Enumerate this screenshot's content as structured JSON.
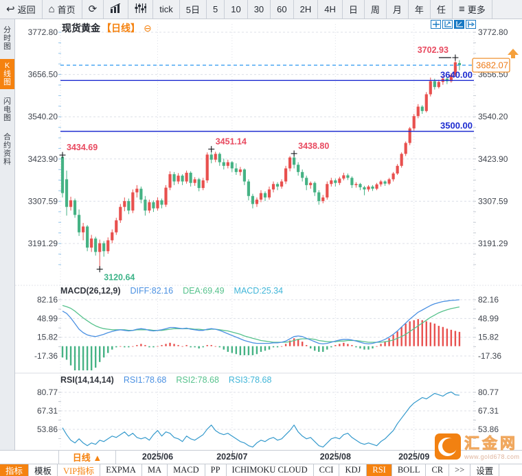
{
  "colors": {
    "accent_orange": "#f5820f",
    "up_red": "#e8504e",
    "down_green": "#45b284",
    "hline_blue": "#1c2bd0",
    "last_price_dash_blue": "#3b9ff0",
    "diff_blue": "#4a90e2",
    "dea_green": "#56c28c",
    "macd_cyan": "#3fb5d8",
    "rsi_line": "#3399cc",
    "annotation_red": "#e8495f",
    "annotation_green": "#3eb489",
    "axis_text": "#3f444d",
    "zoom_icon_blue": "#1779c4"
  },
  "toolbar": {
    "items": [
      {
        "name": "back",
        "icon": "back-arrow-icon",
        "label": "返回"
      },
      {
        "name": "home",
        "icon": "home-icon",
        "label": "首页"
      },
      {
        "name": "refresh",
        "icon": "refresh-icon",
        "label": ""
      },
      {
        "name": "bar-chart",
        "icon": "bar-chart-icon",
        "label": ""
      },
      {
        "name": "candle-chart",
        "icon": "candle-chart-icon",
        "label": ""
      },
      {
        "name": "tick",
        "label": "tick"
      },
      {
        "name": "5d",
        "label": "5日"
      },
      {
        "name": "5",
        "label": "5"
      },
      {
        "name": "10",
        "label": "10"
      },
      {
        "name": "30",
        "label": "30"
      },
      {
        "name": "60",
        "label": "60"
      },
      {
        "name": "2h",
        "label": "2H"
      },
      {
        "name": "4h",
        "label": "4H"
      },
      {
        "name": "day",
        "label": "日"
      },
      {
        "name": "week",
        "label": "周"
      },
      {
        "name": "month",
        "label": "月"
      },
      {
        "name": "year",
        "label": "年"
      },
      {
        "name": "custom",
        "label": "任"
      },
      {
        "name": "more",
        "icon": "menu-icon",
        "label": "更多"
      }
    ]
  },
  "sidebar": {
    "items": [
      {
        "name": "time-chart",
        "label": "分时图",
        "active": false
      },
      {
        "name": "kline-chart",
        "label": "K线图",
        "active": true
      },
      {
        "name": "lightning-chart",
        "label": "闪电图",
        "active": false
      },
      {
        "name": "contract-info",
        "label": "合约资料",
        "active": false
      }
    ]
  },
  "chart_header": {
    "symbol": "现货黄金",
    "period": "【日线】",
    "collapse_icon": "⊖"
  },
  "indicator_headers": {
    "macd": [
      {
        "text": "MACD(26,12,9)",
        "color": "#32363e"
      },
      {
        "text": "DIFF:82.16",
        "color": "#4a90e2"
      },
      {
        "text": "DEA:69.49",
        "color": "#56c28c"
      },
      {
        "text": "MACD:25.34",
        "color": "#3fb5d8"
      }
    ],
    "rsi": [
      {
        "text": "RSI(14,14,14)",
        "color": "#32363e"
      },
      {
        "text": "RSI1:78.68",
        "color": "#4a90e2"
      },
      {
        "text": "RSI2:78.68",
        "color": "#56c28c"
      },
      {
        "text": "RSI3:78.68",
        "color": "#3fb5d8"
      }
    ]
  },
  "bottom": {
    "period_button": "日线 ▲",
    "tabs": [
      {
        "label": "指标",
        "style": "active"
      },
      {
        "label": "模板",
        "style": "normal"
      },
      {
        "label": "VIP指标",
        "style": "vip"
      },
      {
        "label": "EXPMA",
        "style": "normal"
      },
      {
        "label": "MA",
        "style": "normal"
      },
      {
        "label": "MACD",
        "style": "normal"
      },
      {
        "label": "PP",
        "style": "normal"
      },
      {
        "label": "ICHIMOKU CLOUD",
        "style": "normal"
      },
      {
        "label": "CCI",
        "style": "normal"
      },
      {
        "label": "KDJ",
        "style": "normal"
      },
      {
        "label": "RSI",
        "style": "active"
      },
      {
        "label": "BOLL",
        "style": "normal"
      },
      {
        "label": "CR",
        "style": "normal"
      },
      {
        "label": ">>",
        "style": "normal"
      },
      {
        "label": "设置",
        "style": "normal"
      }
    ]
  },
  "watermark": {
    "brand": "汇金网",
    "url": "www.gold678.com"
  },
  "chart_data": [
    {
      "name": "price-panel",
      "type": "candlestick",
      "instrument": "现货黄金",
      "period": "日线",
      "yticks": [
        "3772.80",
        "3656.50",
        "3540.20",
        "3423.90",
        "3307.59",
        "3191.29"
      ],
      "xticks": [
        {
          "index": 23,
          "label": "2025/06"
        },
        {
          "index": 41,
          "label": "2025/07"
        },
        {
          "index": 66,
          "label": "2025/08"
        },
        {
          "index": 85,
          "label": "2025/09"
        }
      ],
      "hlines": [
        {
          "value": 3640.0,
          "label": "3640.00"
        },
        {
          "value": 3500.0,
          "label": "3500.00"
        }
      ],
      "last_price": {
        "value": 3682.07,
        "label": "3682.07"
      },
      "annotations": [
        {
          "index": 0,
          "value": 3434.69,
          "label": "3434.69",
          "color": "#e8495f",
          "side": "right",
          "vpos": "above",
          "dash": false
        },
        {
          "index": 9,
          "value": 3120.64,
          "label": "3120.64",
          "color": "#3eb489",
          "side": "right",
          "vpos": "below",
          "dash": false
        },
        {
          "index": 36,
          "value": 3451.14,
          "label": "3451.14",
          "color": "#e8495f",
          "side": "right",
          "vpos": "above",
          "dash": false
        },
        {
          "index": 56,
          "value": 3438.8,
          "label": "3438.80",
          "color": "#e8495f",
          "side": "right",
          "vpos": "above",
          "dash": false
        },
        {
          "index": 95,
          "value": 3702.93,
          "label": "3702.93",
          "color": "#e8495f",
          "side": "left",
          "vpos": "above",
          "dash": true
        }
      ],
      "candles": [
        [
          3430,
          3434.69,
          3318,
          3330
        ],
        [
          3368,
          3392,
          3268,
          3292
        ],
        [
          3292,
          3320,
          3282,
          3310
        ],
        [
          3310,
          3315,
          3262,
          3270
        ],
        [
          3270,
          3285,
          3212,
          3222
        ],
        [
          3222,
          3248,
          3200,
          3238
        ],
        [
          3238,
          3242,
          3170,
          3180
        ],
        [
          3180,
          3215,
          3168,
          3205
        ],
        [
          3205,
          3210,
          3158,
          3168
        ],
        [
          3168,
          3202,
          3120.64,
          3192
        ],
        [
          3192,
          3198,
          3155,
          3170
        ],
        [
          3170,
          3208,
          3163,
          3200
        ],
        [
          3200,
          3230,
          3192,
          3222
        ],
        [
          3222,
          3262,
          3215,
          3255
        ],
        [
          3255,
          3300,
          3248,
          3292
        ],
        [
          3292,
          3318,
          3280,
          3308
        ],
        [
          3308,
          3315,
          3272,
          3282
        ],
        [
          3282,
          3340,
          3275,
          3332
        ],
        [
          3332,
          3352,
          3318,
          3342
        ],
        [
          3342,
          3348,
          3302,
          3312
        ],
        [
          3312,
          3322,
          3268,
          3282
        ],
        [
          3282,
          3312,
          3275,
          3305
        ],
        [
          3305,
          3310,
          3278,
          3288
        ],
        [
          3288,
          3318,
          3282,
          3310
        ],
        [
          3310,
          3315,
          3288,
          3298
        ],
        [
          3298,
          3352,
          3292,
          3345
        ],
        [
          3345,
          3390,
          3338,
          3382
        ],
        [
          3382,
          3388,
          3352,
          3362
        ],
        [
          3362,
          3385,
          3355,
          3378
        ],
        [
          3378,
          3382,
          3352,
          3362
        ],
        [
          3362,
          3392,
          3356,
          3386
        ],
        [
          3386,
          3390,
          3348,
          3358
        ],
        [
          3358,
          3374,
          3350,
          3368
        ],
        [
          3368,
          3372,
          3335,
          3344
        ],
        [
          3344,
          3372,
          3338,
          3365
        ],
        [
          3365,
          3442,
          3358,
          3436
        ],
        [
          3436,
          3451.14,
          3412,
          3422
        ],
        [
          3422,
          3444,
          3415,
          3438
        ],
        [
          3438,
          3442,
          3405,
          3415
        ],
        [
          3415,
          3425,
          3395,
          3405
        ],
        [
          3405,
          3422,
          3398,
          3415
        ],
        [
          3415,
          3418,
          3388,
          3398
        ],
        [
          3398,
          3412,
          3380,
          3388
        ],
        [
          3388,
          3402,
          3378,
          3395
        ],
        [
          3395,
          3398,
          3352,
          3362
        ],
        [
          3362,
          3368,
          3310,
          3322
        ],
        [
          3322,
          3328,
          3288,
          3300
        ],
        [
          3300,
          3318,
          3292,
          3312
        ],
        [
          3312,
          3338,
          3305,
          3330
        ],
        [
          3330,
          3335,
          3308,
          3318
        ],
        [
          3318,
          3348,
          3312,
          3340
        ],
        [
          3340,
          3362,
          3332,
          3355
        ],
        [
          3355,
          3360,
          3338,
          3348
        ],
        [
          3348,
          3368,
          3342,
          3362
        ],
        [
          3362,
          3405,
          3355,
          3398
        ],
        [
          3398,
          3432,
          3390,
          3428
        ],
        [
          3428,
          3438.8,
          3398,
          3408
        ],
        [
          3408,
          3415,
          3378,
          3388
        ],
        [
          3388,
          3395,
          3362,
          3372
        ],
        [
          3372,
          3378,
          3338,
          3352
        ],
        [
          3352,
          3362,
          3342,
          3358
        ],
        [
          3358,
          3362,
          3322,
          3332
        ],
        [
          3332,
          3338,
          3298,
          3308
        ],
        [
          3308,
          3325,
          3302,
          3318
        ],
        [
          3318,
          3362,
          3312,
          3355
        ],
        [
          3355,
          3372,
          3348,
          3365
        ],
        [
          3365,
          3370,
          3348,
          3358
        ],
        [
          3358,
          3375,
          3352,
          3370
        ],
        [
          3370,
          3386,
          3365,
          3379
        ],
        [
          3379,
          3384,
          3366,
          3372
        ],
        [
          3372,
          3376,
          3344,
          3352
        ],
        [
          3352,
          3360,
          3345,
          3355
        ],
        [
          3355,
          3358,
          3338,
          3346
        ],
        [
          3346,
          3350,
          3324,
          3340
        ],
        [
          3340,
          3352,
          3334,
          3348
        ],
        [
          3348,
          3352,
          3336,
          3342
        ],
        [
          3342,
          3358,
          3338,
          3354
        ],
        [
          3354,
          3366,
          3348,
          3362
        ],
        [
          3362,
          3365,
          3350,
          3356
        ],
        [
          3356,
          3372,
          3352,
          3368
        ],
        [
          3368,
          3388,
          3362,
          3384
        ],
        [
          3384,
          3410,
          3380,
          3405
        ],
        [
          3405,
          3442,
          3400,
          3438
        ],
        [
          3438,
          3472,
          3432,
          3468
        ],
        [
          3468,
          3512,
          3462,
          3508
        ],
        [
          3508,
          3548,
          3502,
          3542
        ],
        [
          3542,
          3575,
          3536,
          3568
        ],
        [
          3568,
          3572,
          3548,
          3556
        ],
        [
          3556,
          3608,
          3552,
          3602
        ],
        [
          3602,
          3648,
          3596,
          3638
        ],
        [
          3638,
          3645,
          3615,
          3622
        ],
        [
          3622,
          3642,
          3618,
          3636
        ],
        [
          3636,
          3652,
          3628,
          3645
        ],
        [
          3645,
          3650,
          3630,
          3638
        ],
        [
          3638,
          3660,
          3634,
          3655
        ],
        [
          3655,
          3702.93,
          3650,
          3690
        ],
        [
          3688,
          3696,
          3668,
          3682.07
        ]
      ]
    },
    {
      "name": "macd-panel",
      "type": "macd",
      "params": "MACD(26,12,9)",
      "values": {
        "DIFF": 82.16,
        "DEA": 69.49,
        "MACD": 25.34
      },
      "yticks": [
        "82.16",
        "48.99",
        "15.82",
        "-17.36"
      ],
      "diff": [
        62,
        58,
        50,
        40,
        30,
        24,
        20,
        18,
        17,
        19,
        21,
        24,
        26,
        28,
        29,
        28,
        27,
        28,
        30,
        31,
        30,
        28,
        27,
        28,
        29,
        31,
        33,
        33,
        32,
        31,
        32,
        30,
        29,
        28,
        28,
        30,
        31,
        30,
        28,
        25,
        22,
        19,
        16,
        13,
        10,
        8,
        6,
        5,
        5,
        5,
        5,
        6,
        6,
        7,
        9,
        13,
        17,
        18,
        17,
        14,
        11,
        8,
        5,
        4,
        5,
        7,
        9,
        11,
        12,
        12,
        11,
        9,
        7,
        5,
        4,
        5,
        7,
        9,
        12,
        16,
        21,
        27,
        34,
        41,
        48,
        54,
        60,
        64,
        68,
        72,
        75,
        77,
        79,
        80,
        81,
        81.5,
        82.16
      ],
      "dea": [
        72,
        70,
        67,
        62,
        56,
        50,
        45,
        40,
        36,
        33,
        31,
        30,
        29,
        29,
        29,
        29,
        28,
        28,
        29,
        29,
        29,
        29,
        28,
        28,
        28,
        29,
        30,
        31,
        31,
        31,
        31,
        31,
        30,
        30,
        29,
        29,
        30,
        30,
        29,
        28,
        27,
        25,
        23,
        21,
        18,
        16,
        14,
        12,
        10,
        9,
        8,
        7,
        7,
        7,
        7,
        8,
        10,
        12,
        13,
        13,
        13,
        12,
        10,
        9,
        8,
        8,
        8,
        9,
        9,
        10,
        10,
        10,
        9,
        8,
        7,
        7,
        7,
        7,
        8,
        9,
        11,
        14,
        17,
        21,
        26,
        31,
        36,
        41,
        46,
        51,
        55,
        59,
        62,
        64.5,
        66.5,
        68,
        69.49
      ]
    },
    {
      "name": "rsi-panel",
      "type": "rsi",
      "params": "RSI(14,14,14)",
      "values": {
        "RSI1": 78.68,
        "RSI2": 78.68,
        "RSI3": 78.68
      },
      "yticks": [
        "80.77",
        "67.31",
        "53.86"
      ],
      "rsi": [
        55,
        50,
        46,
        44,
        47,
        44,
        42,
        44,
        43,
        46,
        45,
        47,
        49,
        48,
        50,
        52,
        49,
        51,
        48,
        47,
        48,
        46,
        50,
        53,
        49,
        52,
        51,
        48,
        47,
        45,
        49,
        47,
        46,
        48,
        50,
        54,
        57,
        53,
        51,
        50,
        51,
        49,
        47,
        45,
        44,
        42,
        41,
        44,
        46,
        45,
        47,
        48,
        46,
        47,
        50,
        53,
        57,
        52,
        49,
        47,
        48,
        45,
        42,
        41,
        44,
        47,
        48,
        47,
        50,
        51,
        48,
        46,
        44,
        43,
        44,
        43,
        42,
        45,
        47,
        50,
        53,
        58,
        62,
        66,
        70,
        73,
        75,
        77,
        76,
        78,
        80,
        79,
        78,
        80,
        81,
        79,
        78.68
      ]
    }
  ]
}
